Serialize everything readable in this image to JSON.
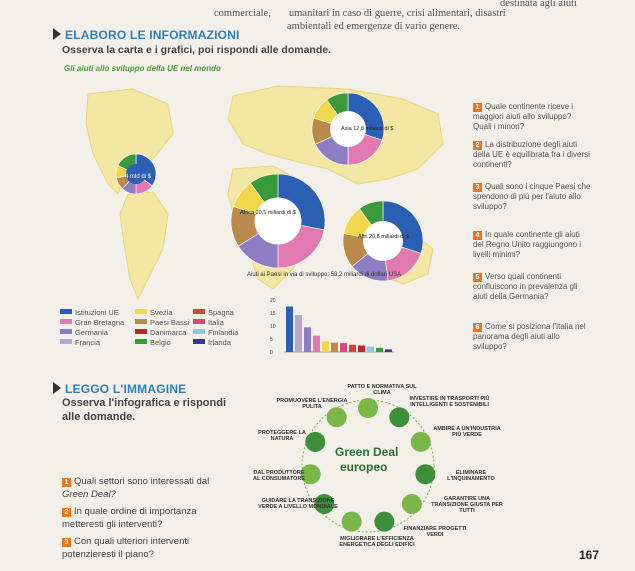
{
  "header": {
    "line1_right": "destinata agli aiuti",
    "line2_left": "commerciale,",
    "line2_mid": "umanitari in caso di guerre, crisi alimentari, disastri",
    "line3_mid": "ambientali ed emergenze di vario genere."
  },
  "elaboro": {
    "heading": "ELABORO LE INFORMAZIONI",
    "instruction": "Osserva la carta e i grafici, poi rispondi alle domande.",
    "map_title": "Gli aiuti allo sviluppo della UE nel mondo",
    "pies": [
      {
        "label": "4 mld di $"
      },
      {
        "label": "Asia 12,8 miliardi di $"
      },
      {
        "label": "Africa 20,5 miliardi di $"
      },
      {
        "label": "Altri 20,8 miliardi di $"
      }
    ],
    "legend": [
      {
        "label": "Istituzioni UE",
        "color": "#2b5fb3"
      },
      {
        "label": "Svezia",
        "color": "#f2d64b"
      },
      {
        "label": "Spagna",
        "color": "#c94a3c"
      },
      {
        "label": "Gran Bretagna",
        "color": "#e07ab0"
      },
      {
        "label": "Paesi Bassi",
        "color": "#b98a4a"
      },
      {
        "label": "Italia",
        "color": "#d64a7a"
      },
      {
        "label": "Germania",
        "color": "#8d7ec4"
      },
      {
        "label": "Danimarca",
        "color": "#c0272d"
      },
      {
        "label": "Finlandia",
        "color": "#8fc6e8"
      },
      {
        "label": "Francia",
        "color": "#b7a6d6"
      },
      {
        "label": "Belgio",
        "color": "#3a9a3a"
      },
      {
        "label": "Irlanda",
        "color": "#3a3a8a"
      }
    ]
  },
  "chart_data": {
    "type": "bar",
    "title": "Aiuti ai Paesi in via di sviluppo: 58,2 miliardi di dollari USA",
    "yticks": [
      "20",
      "15",
      "10",
      "5",
      "0"
    ],
    "ylim": [
      0,
      20
    ],
    "values": [
      17.5,
      14.2,
      9.5,
      6.3,
      4.1,
      3.6,
      3.4,
      2.8,
      2.5,
      2.1,
      1.6,
      1.0
    ],
    "colors": [
      "#2b5fb3",
      "#b7a6d6",
      "#8d7ec4",
      "#e07ab0",
      "#f2d64b",
      "#b98a4a",
      "#d64a7a",
      "#c94a3c",
      "#c0272d",
      "#8fc6e8",
      "#3a9a3a",
      "#3a3a8a"
    ]
  },
  "questions": [
    {
      "num": "1",
      "text": "Quale continente riceve i maggiori aiuti allo sviluppo? Quali i minori?"
    },
    {
      "num": "2",
      "text": "La distribuzione degli aiuti della UE è equilibrata fra i diversi continenti?"
    },
    {
      "num": "3",
      "text": "Quali sono i cinque Paesi che spendono di più per l'aiuto allo sviluppo?"
    },
    {
      "num": "4",
      "text": "In quale continente gli aiuti del Regno Unito raggiungono i livelli minimi?"
    },
    {
      "num": "5",
      "text": "Verso quali continenti confluiscono in prevalenza gli aiuti della Germania?"
    },
    {
      "num": "6",
      "text": "Come si posiziona l'Italia nel panorama degli aiuti allo sviluppo?"
    }
  ],
  "leggo": {
    "heading": "LEGGO L'IMMAGINE",
    "instruction_1": "Osserva l'infografica e rispondi",
    "instruction_2": "alle domande.",
    "center_1": "Green Deal",
    "center_2": "europeo",
    "items": [
      {
        "label": "PATTO E NORMATIVA SUL CLIMA"
      },
      {
        "label": "INVESTIRE IN TRASPORTI PIÙ INTELLIGENTI E SOSTENIBILI"
      },
      {
        "label": "AMBIRE A UN'INDUSTRIA PIÙ VERDE"
      },
      {
        "label": "ELIMINARE L'INQUINAMENTO"
      },
      {
        "label": "GARANTIRE UNA TRANSIZIONE GIUSTA PER TUTTI"
      },
      {
        "label": "FINANZIARE PROGETTI VERDI"
      },
      {
        "label": "MIGLIORARE L'EFFICIENZA ENERGETICA DEGLI EDIFICI"
      },
      {
        "label": "GUIDARE LA TRANSIZIONE VERDE A LIVELLO MONDIALE"
      },
      {
        "label": "DAL PRODUTTORE AL CONSUMATORE"
      },
      {
        "label": "PROTEGGERE LA NATURA"
      },
      {
        "label": "PROMUOVERE L'ENERGIA PULITA"
      }
    ],
    "questions": [
      {
        "num": "1",
        "text1": "Quali settori sono interessati dal",
        "text2": "Green Deal?"
      },
      {
        "num": "2",
        "text1": "In quale ordine di importanza",
        "text2": "metteresti gli interventi?"
      },
      {
        "num": "3",
        "text1": "Con quali ulteriori interventi",
        "text2": "potenzieresti il piano?"
      }
    ]
  },
  "page_number": "167"
}
